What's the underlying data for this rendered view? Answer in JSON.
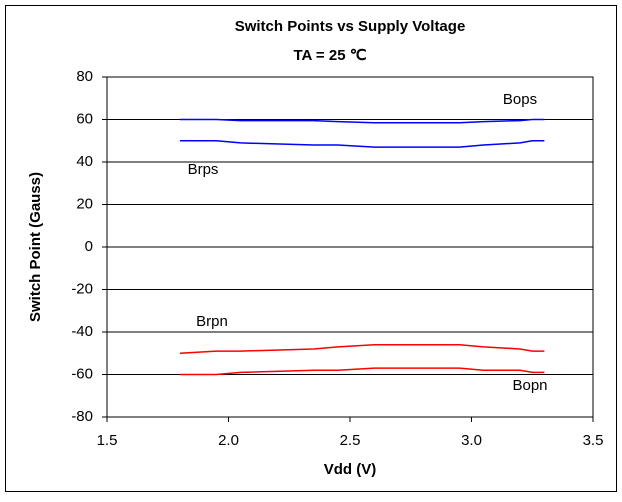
{
  "chart_data": {
    "type": "line",
    "title": "Switch Points vs Supply Voltage",
    "subtitle": "TA = 25 ℃",
    "x_label": "Vdd (V)",
    "y_label": "Switch Point (Gauss)",
    "x": [
      1.8,
      1.95,
      2.05,
      2.35,
      2.45,
      2.6,
      2.95,
      3.05,
      3.2,
      3.25,
      3.3
    ],
    "series": [
      {
        "name": "Bops",
        "color": "#0000ff",
        "values": [
          60,
          60,
          59.5,
          59.5,
          59,
          58.5,
          58.5,
          59,
          59.5,
          60,
          60
        ]
      },
      {
        "name": "Brps",
        "color": "#0000ff",
        "values": [
          50,
          50,
          49,
          48,
          48,
          47,
          47,
          48,
          49,
          50,
          50
        ]
      },
      {
        "name": "Brpn",
        "color": "#ff0000",
        "values": [
          -50,
          -49,
          -49,
          -48,
          -47,
          -46,
          -46,
          -47,
          -48,
          -49,
          -49
        ]
      },
      {
        "name": "Bopn",
        "color": "#ff0000",
        "values": [
          -60,
          -60,
          -59,
          -58,
          -58,
          -57,
          -57,
          -58,
          -58,
          -59,
          -59
        ]
      }
    ],
    "xlim": [
      1.5,
      3.5
    ],
    "xticks": [
      1.5,
      {
        "value": 2,
        "label": "2.0"
      },
      2.5,
      {
        "value": 3,
        "label": "3.0"
      },
      3.5
    ],
    "ylim": [
      -80,
      80
    ],
    "yticks": [
      -80,
      -60,
      -40,
      -20,
      0,
      20,
      40,
      60,
      80
    ],
    "grid": true
  }
}
